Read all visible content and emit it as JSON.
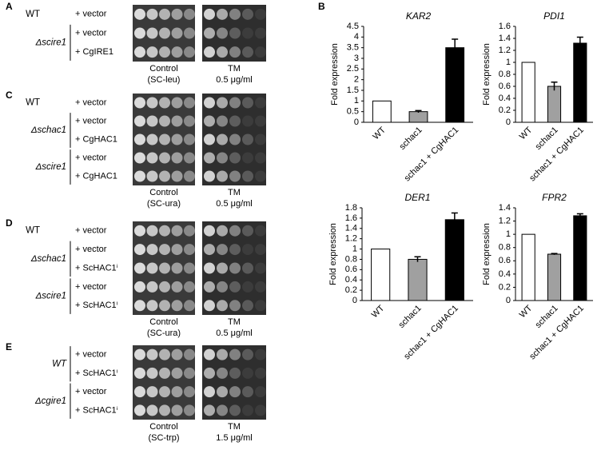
{
  "panels": [
    {
      "letter": "A",
      "groups": [
        {
          "name": "WT",
          "rows": [
            "+ vector"
          ]
        },
        {
          "name": "Δscire1",
          "rows": [
            "+ vector",
            "+ CgIRE1"
          ]
        }
      ],
      "captions": [
        [
          "Control",
          "(SC-leu)"
        ],
        [
          "TM",
          "0.5 μg/ml"
        ]
      ]
    },
    {
      "letter": "C",
      "groups": [
        {
          "name": "WT",
          "rows": [
            "+ vector"
          ]
        },
        {
          "name": "Δschac1",
          "rows": [
            "+ vector",
            "+ CgHAC1"
          ]
        },
        {
          "name": "Δscire1",
          "rows": [
            "+ vector",
            "+ CgHAC1"
          ]
        }
      ],
      "captions": [
        [
          "Control",
          "(SC-ura)"
        ],
        [
          "TM",
          "0.5 μg/ml"
        ]
      ]
    },
    {
      "letter": "D",
      "groups": [
        {
          "name": "WT",
          "rows": [
            "+ vector"
          ]
        },
        {
          "name": "Δschac1",
          "rows": [
            "+ vector",
            "+ ScHAC1ⁱ"
          ]
        },
        {
          "name": "Δscire1",
          "rows": [
            "+ vector",
            "+ ScHAC1ⁱ"
          ]
        }
      ],
      "captions": [
        [
          "Control",
          "(SC-ura)"
        ],
        [
          "TM",
          "0.5 μg/ml"
        ]
      ]
    },
    {
      "letter": "E",
      "groups": [
        {
          "name": "WT",
          "rows": [
            "+ vector",
            "+ ScHAC1ⁱ"
          ]
        },
        {
          "name": "Δcgire1",
          "rows": [
            "+ vector",
            "+ ScHAC1ⁱ"
          ]
        }
      ],
      "captions": [
        [
          "Control",
          "(SC-trp)"
        ],
        [
          "TM",
          "1.5 μg/ml"
        ]
      ]
    }
  ],
  "chart_letter": "B",
  "chart_data": [
    {
      "type": "bar",
      "title": "KAR2",
      "y_label": "Fold expression",
      "categories": [
        "WT",
        "schac1",
        "schac1 + CgHAC1"
      ],
      "values": [
        1,
        0.5,
        3.5
      ],
      "errors": [
        0,
        0.05,
        0.4
      ],
      "colors": [
        "#ffffff",
        "#a0a0a0",
        "#000000"
      ],
      "ylim": [
        0,
        4.5
      ],
      "yticks": [
        0,
        0.5,
        1,
        1.5,
        2,
        2.5,
        3,
        3.5,
        4,
        4.5
      ]
    },
    {
      "type": "bar",
      "title": "PDI1",
      "y_label": "Fold expression",
      "categories": [
        "WT",
        "schac1",
        "schac1 + CgHAC1"
      ],
      "values": [
        1,
        0.6,
        1.32
      ],
      "errors": [
        0,
        0.07,
        0.1
      ],
      "colors": [
        "#ffffff",
        "#a0a0a0",
        "#000000"
      ],
      "ylim": [
        0,
        1.6
      ],
      "yticks": [
        0,
        0.2,
        0.4,
        0.6,
        0.8,
        1,
        1.2,
        1.4,
        1.6
      ]
    },
    {
      "type": "bar",
      "title": "DER1",
      "y_label": "Fold expression",
      "categories": [
        "WT",
        "schac1",
        "schac1 + CgHAC1"
      ],
      "values": [
        1,
        0.8,
        1.57
      ],
      "errors": [
        0,
        0.05,
        0.13
      ],
      "colors": [
        "#ffffff",
        "#a0a0a0",
        "#000000"
      ],
      "ylim": [
        0,
        1.8
      ],
      "yticks": [
        0,
        0.2,
        0.4,
        0.6,
        0.8,
        1,
        1.2,
        1.4,
        1.6,
        1.8
      ]
    },
    {
      "type": "bar",
      "title": "FPR2",
      "y_label": "Fold expression",
      "categories": [
        "WT",
        "schac1",
        "schac1 + CgHAC1"
      ],
      "values": [
        1,
        0.7,
        1.28
      ],
      "errors": [
        0,
        0.01,
        0.03
      ],
      "colors": [
        "#ffffff",
        "#a0a0a0",
        "#000000"
      ],
      "ylim": [
        0,
        1.4
      ],
      "yticks": [
        0,
        0.2,
        0.4,
        0.6,
        0.8,
        1,
        1.2,
        1.4
      ]
    }
  ]
}
